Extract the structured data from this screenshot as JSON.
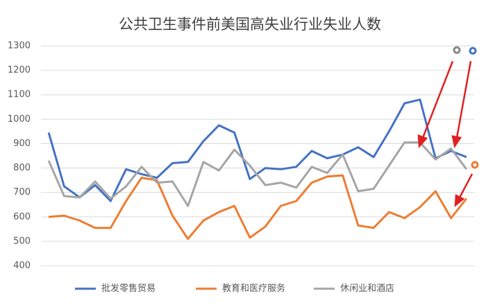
{
  "chart_data": {
    "type": "line",
    "title": "公共卫生事件前美国高失业行业失业人数",
    "categories": [
      null,
      null,
      null,
      null,
      null,
      null,
      null,
      null,
      null,
      null,
      null,
      null,
      null,
      null,
      null,
      null,
      null,
      null,
      null,
      null,
      null,
      null,
      null,
      null,
      null,
      null,
      null,
      null
    ],
    "series": [
      {
        "name": "批发零售贸易",
        "color": "#4472c4",
        "values": [
          945,
          725,
          680,
          730,
          665,
          795,
          775,
          760,
          820,
          825,
          910,
          975,
          945,
          755,
          800,
          795,
          805,
          870,
          840,
          855,
          885,
          845,
          950,
          1065,
          1080,
          840,
          870,
          845
        ]
      },
      {
        "name": "教育和医疗服务",
        "color": "#ed7d31",
        "values": [
          600,
          605,
          585,
          555,
          555,
          665,
          760,
          750,
          605,
          510,
          585,
          620,
          645,
          515,
          560,
          645,
          665,
          740,
          765,
          770,
          565,
          555,
          620,
          595,
          640,
          705,
          595,
          675
        ]
      },
      {
        "name": "休闲业和酒店",
        "color": "#a5a5a5",
        "values": [
          830,
          685,
          680,
          745,
          675,
          725,
          805,
          740,
          745,
          645,
          825,
          790,
          875,
          810,
          730,
          740,
          720,
          805,
          780,
          855,
          705,
          715,
          810,
          905,
          905,
          835,
          880,
          795
        ]
      }
    ],
    "ylim": [
      400,
      1300
    ],
    "yticks": [
      400,
      500,
      600,
      700,
      800,
      900,
      1000,
      1100,
      1200,
      1300
    ],
    "grid": true,
    "legend": "bottom"
  }
}
